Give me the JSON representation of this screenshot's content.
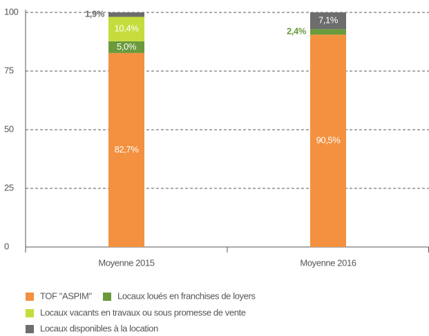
{
  "chart_data": {
    "type": "stacked_bar",
    "categories": [
      "Moyenne 2015",
      "Moyenne 2016"
    ],
    "series": [
      {
        "name": "TOF \"ASPIM\"",
        "color": "#f39140",
        "values": [
          82.7,
          90.5
        ],
        "value_labels": [
          "82,7%",
          "90,5%"
        ]
      },
      {
        "name": "Locaux loués en franchises de loyers",
        "color": "#6a9a3c",
        "values": [
          5.0,
          2.4
        ],
        "value_labels": [
          "5,0%",
          "2,4%"
        ]
      },
      {
        "name": "Locaux vacants en travaux ou sous promesse de vente",
        "color": "#c6dc3c",
        "values": [
          10.4,
          0
        ],
        "value_labels": [
          "10,4%",
          null
        ]
      },
      {
        "name": "Locaux disponibles à la location",
        "color": "#6d6d6d",
        "values": [
          1.9,
          7.1
        ],
        "value_labels": [
          "1,9%",
          "7,1%"
        ]
      }
    ],
    "ylim": [
      0,
      100
    ],
    "yticks": [
      0,
      25,
      50,
      75,
      100
    ],
    "grid": true
  }
}
